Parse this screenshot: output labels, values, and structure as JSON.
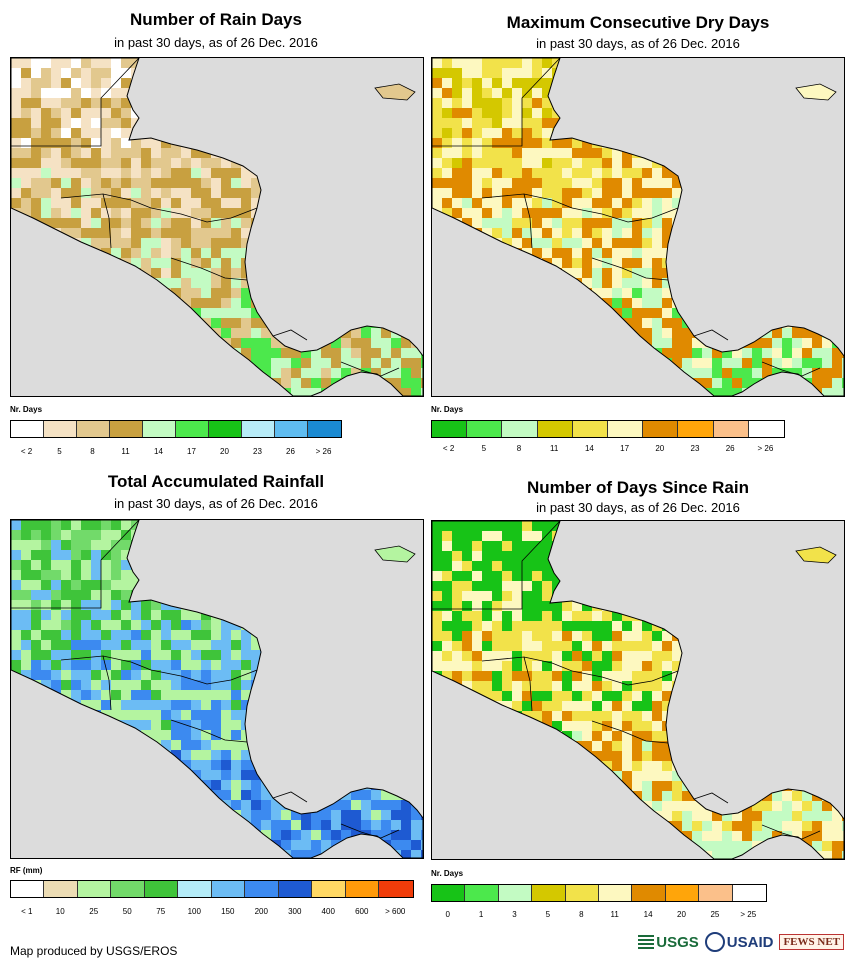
{
  "panels": [
    {
      "id": "rain-days",
      "title": "Number of Rain Days",
      "subtitle": "in past 30 days, as of 26 Dec. 2016",
      "unit_label": "Nr. Days",
      "legend_labels": [
        "< 2",
        "5",
        "8",
        "11",
        "14",
        "17",
        "20",
        "23",
        "26",
        "> 26"
      ],
      "legend_colors": [
        "#ffffff",
        "#f5e2c4",
        "#e2c88e",
        "#c8a040",
        "#c3fbc3",
        "#4ce84c",
        "#17c317",
        "#b8ecf8",
        "#5fbcf0",
        "#1a8ad2"
      ],
      "fill": [
        "#ffffff",
        "#f5e2c4",
        "#e2c88e",
        "#c8a040",
        "#c3fbc3",
        "#4ce84c"
      ]
    },
    {
      "id": "max-consecutive-dry-days",
      "title": "Maximum Consecutive Dry Days",
      "subtitle": "in past 30 days, as of 26 Dec. 2016",
      "unit_label": "Nr. Days",
      "legend_labels": [
        "< 2",
        "5",
        "8",
        "11",
        "14",
        "17",
        "20",
        "23",
        "26",
        "> 26"
      ],
      "legend_colors": [
        "#17c317",
        "#4ce84c",
        "#c3fbc3",
        "#d4c800",
        "#f2e24a",
        "#fdf8c0",
        "#e08a00",
        "#ffa50a",
        "#fbc08a",
        "#ffffff"
      ],
      "fill": [
        "#d4c800",
        "#f2e24a",
        "#fdf8c0",
        "#e08a00",
        "#c3fbc3",
        "#4ce84c"
      ]
    },
    {
      "id": "total-accumulated-rainfall",
      "title": "Total Accumulated Rainfall",
      "subtitle": "in past 30 days, as of 26 Dec. 2016",
      "unit_label": "RF (mm)",
      "legend_labels": [
        "< 1",
        "10",
        "25",
        "50",
        "75",
        "100",
        "150",
        "200",
        "300",
        "400",
        "600",
        "> 600"
      ],
      "legend_colors": [
        "#ffffff",
        "#ecdcb4",
        "#b4f4a0",
        "#72da6a",
        "#3fc43a",
        "#b4ecf8",
        "#6cbcf4",
        "#3c8af0",
        "#1e5ad2",
        "#ffd864",
        "#ff9a0a",
        "#f03c0a"
      ],
      "fill": [
        "#72da6a",
        "#3fc43a",
        "#b4f4a0",
        "#6cbcf4",
        "#3c8af0",
        "#1e5ad2"
      ]
    },
    {
      "id": "days-since-rain",
      "title": "Number of Days Since Rain",
      "subtitle": "in past 30 days, as of 26 Dec. 2016",
      "unit_label": "Nr. Days",
      "legend_labels": [
        "0",
        "1",
        "3",
        "5",
        "8",
        "11",
        "14",
        "20",
        "25",
        "> 25"
      ],
      "legend_colors": [
        "#17c317",
        "#4ce84c",
        "#c3fbc3",
        "#d4c800",
        "#f2e24a",
        "#fdf8c0",
        "#e08a00",
        "#ffa50a",
        "#fbc08a",
        "#ffffff"
      ],
      "fill": [
        "#17c317",
        "#17c317",
        "#f2e24a",
        "#fdf8c0",
        "#e08a00",
        "#c3fbc3"
      ]
    }
  ],
  "credit": "Map produced by USGS/EROS",
  "logos": [
    "USGS",
    "USAID",
    "FEWS NET"
  ]
}
